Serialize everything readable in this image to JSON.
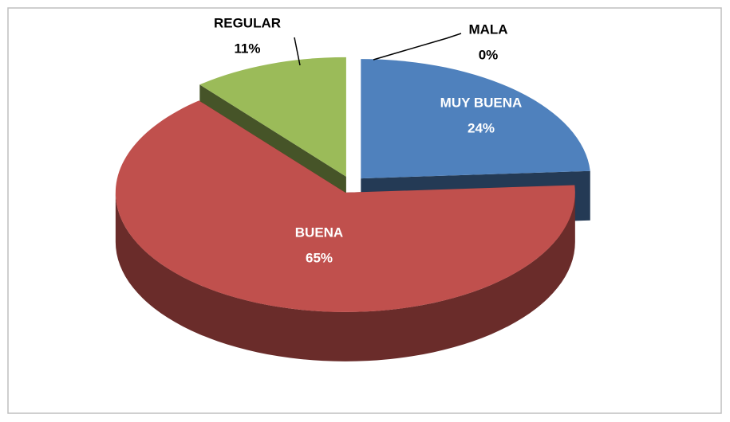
{
  "chart_data": {
    "type": "pie3d",
    "categories": [
      "MUY BUENA",
      "BUENA",
      "REGULAR",
      "MALA"
    ],
    "values": [
      24,
      65,
      11,
      0
    ],
    "value_labels": [
      "24%",
      "65%",
      "11%",
      "0%"
    ],
    "colors": [
      "#4f81bd",
      "#c0504d",
      "#9bbb59",
      "#8064a2"
    ]
  }
}
